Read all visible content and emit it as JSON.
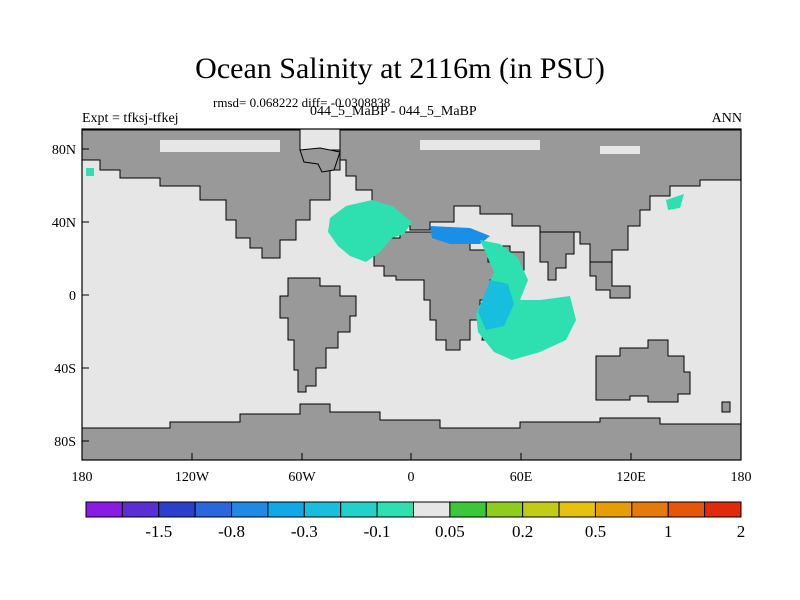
{
  "title": "Ocean Salinity at 2116m (in PSU)",
  "stats": "rmsd= 0.068222 diff= -0.0308838",
  "experiment": "Expt = tfksj-tfkej",
  "runs": "044_5_MaBP - 044_5_MaBP",
  "season": "ANN",
  "colors": {
    "land": "#999999",
    "ocean": "#e6e6e6",
    "teal": "#2ee0b0",
    "blue": "#1a8fe8"
  },
  "x_ticks": [
    "180",
    "120W",
    "60W",
    "0",
    "60E",
    "120E",
    "180"
  ],
  "y_ticks": [
    "80N",
    "40N",
    "0",
    "40S",
    "80S"
  ],
  "colorbar": {
    "colors": [
      "#8a1ae6",
      "#5a2ed2",
      "#2a40cc",
      "#2a66dc",
      "#1e8ae6",
      "#10a8e6",
      "#18bede",
      "#22d2c8",
      "#2ee0b0",
      "#e6e6e6",
      "#3ac83a",
      "#8ecc1e",
      "#c2cc14",
      "#e6c20e",
      "#e69e06",
      "#e67a08",
      "#e6560a",
      "#e02a0a"
    ],
    "labels": [
      "-1.5",
      "-0.8",
      "-0.3",
      "-0.1",
      "0.05",
      "0.2",
      "0.5",
      "1",
      "2"
    ]
  }
}
